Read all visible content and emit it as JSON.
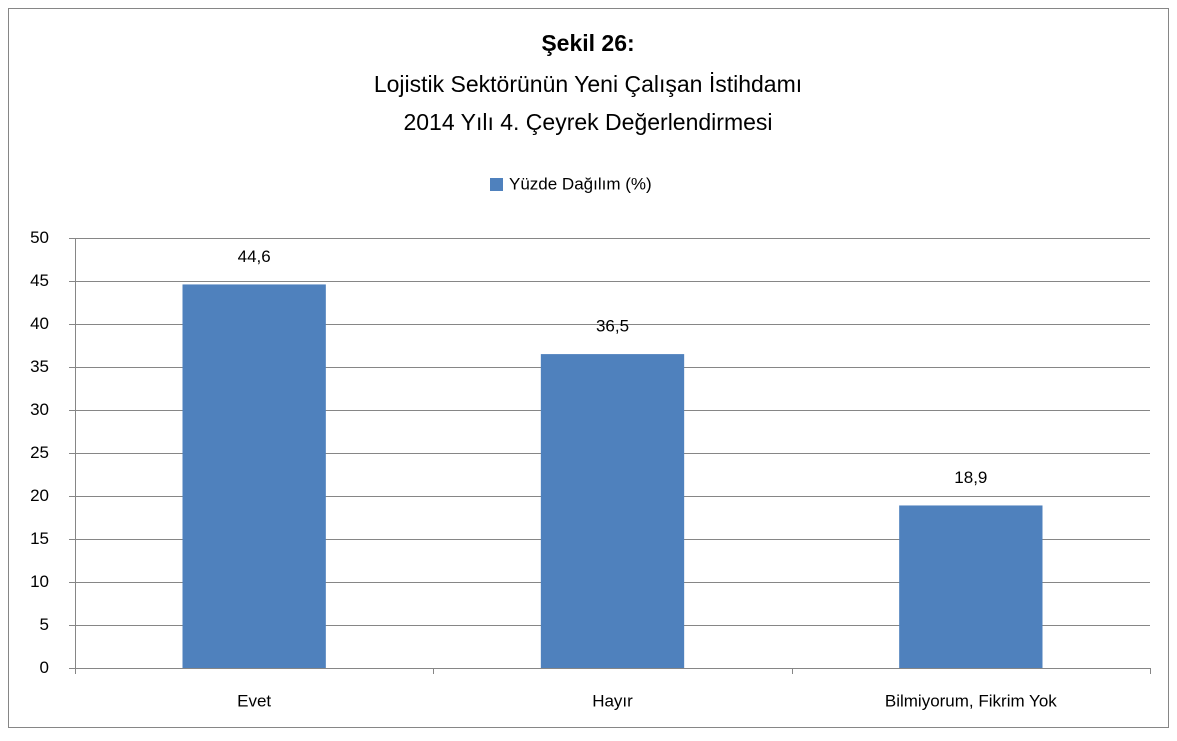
{
  "chart_data": {
    "type": "bar",
    "title": "Şekil 26:",
    "subtitle": [
      "Lojistik Sektörünün Yeni Çalışan İstihdamı",
      "2014 Yılı 4. Çeyrek Değerlendirmesi"
    ],
    "categories": [
      "Evet",
      "Hayır",
      "Bilmiyorum, Fikrim Yok"
    ],
    "series": [
      {
        "name": "Yüzde Dağılım (%)",
        "color": "#4f81bd",
        "values": [
          44.6,
          36.5,
          18.9
        ],
        "value_labels": [
          "44,6",
          "36,5",
          "18,9"
        ]
      }
    ],
    "ylim": [
      0,
      50
    ],
    "yticks": [
      0,
      5,
      10,
      15,
      20,
      25,
      30,
      35,
      40,
      45,
      50
    ],
    "grid": true,
    "legend": "top"
  }
}
